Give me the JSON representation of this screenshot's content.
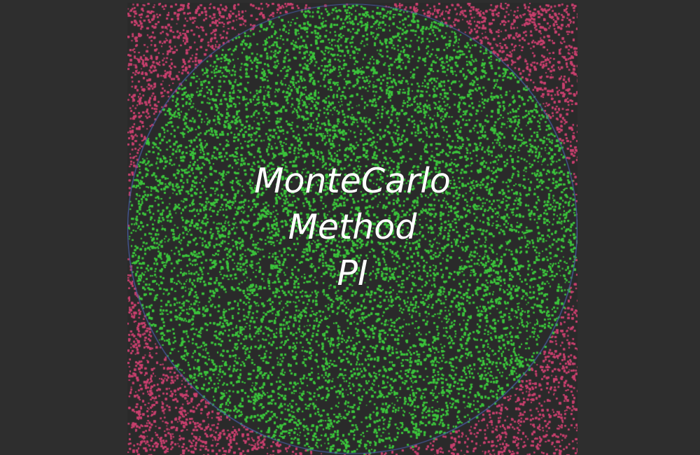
{
  "title_lines": [
    "MonteCarlo",
    "Method",
    "PI"
  ],
  "colors": {
    "background": "#2e2e2e",
    "outside_points": "#c8406e",
    "inside_points": "#3cc43c",
    "circle_outline": "#4a5fa8",
    "gap": "#2a2a2a",
    "text": "#ffffff"
  }
}
